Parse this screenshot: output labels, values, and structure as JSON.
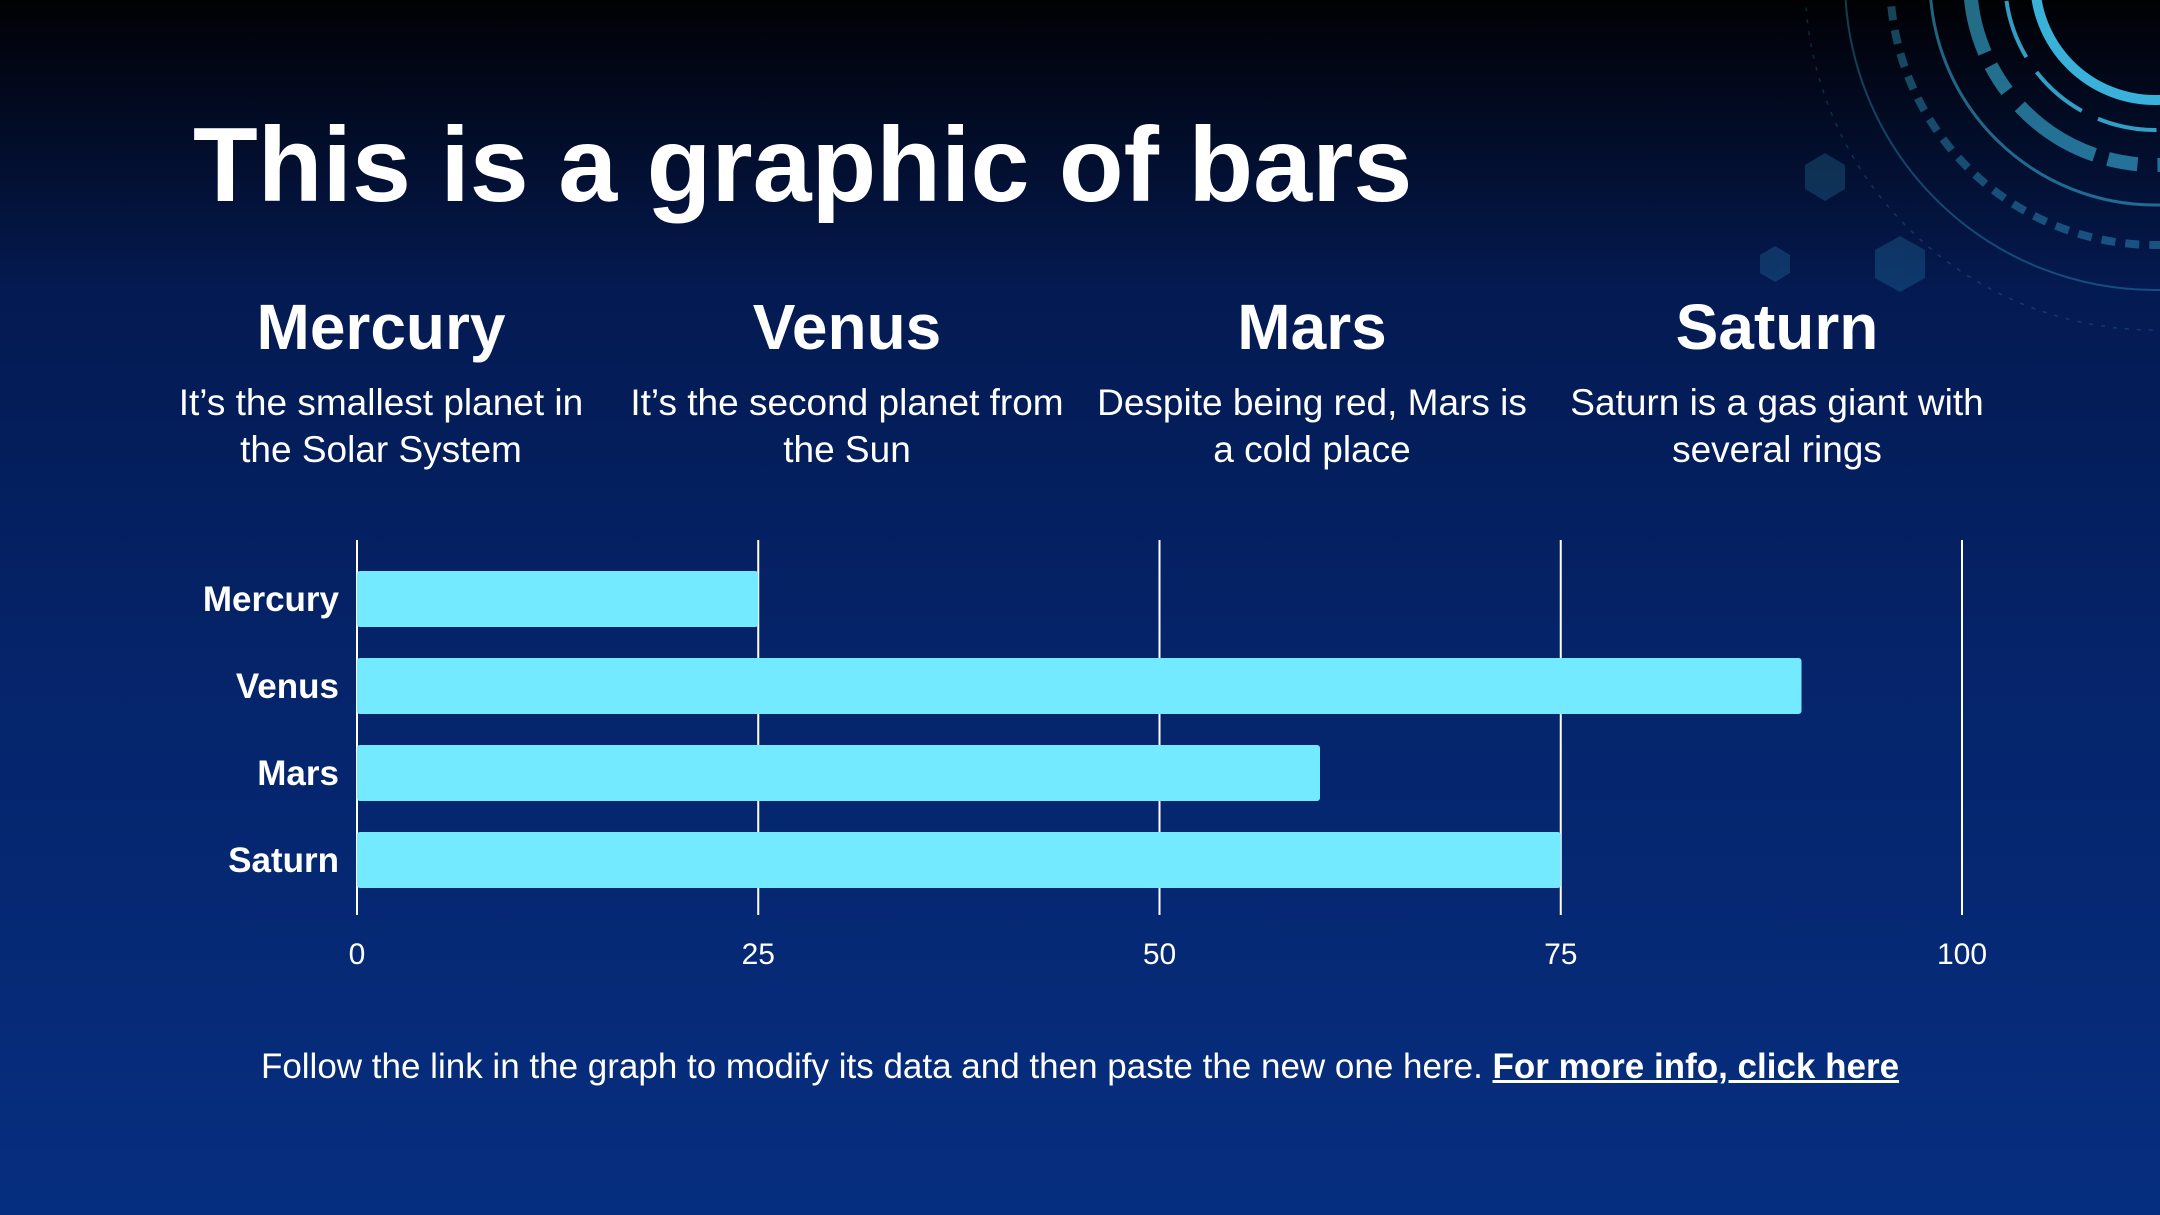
{
  "slide": {
    "title": "This is a graphic of bars"
  },
  "planets": [
    {
      "name": "Mercury",
      "description": "It’s the smallest planet in the Solar System"
    },
    {
      "name": "Venus",
      "description": "It’s the second planet from the Sun"
    },
    {
      "name": "Mars",
      "description": "Despite being red, Mars is a cold place"
    },
    {
      "name": "Saturn",
      "description": "Saturn is a gas giant with several rings"
    }
  ],
  "footer": {
    "text": "Follow the link in the graph to modify its data and then paste the new one here.",
    "link_label": "For more info, click here"
  },
  "colors": {
    "bar": "#73eaff",
    "gridline": "#ffffff",
    "accent_deco": "#3fc4f0"
  },
  "chart_data": {
    "type": "bar",
    "orientation": "horizontal",
    "categories": [
      "Mercury",
      "Venus",
      "Mars",
      "Saturn"
    ],
    "values": [
      25,
      90,
      60,
      75
    ],
    "xlim": [
      0,
      100
    ],
    "xticks": [
      0,
      25,
      50,
      75,
      100
    ],
    "title": "",
    "xlabel": "",
    "ylabel": "",
    "grid": true,
    "legend": "none"
  }
}
